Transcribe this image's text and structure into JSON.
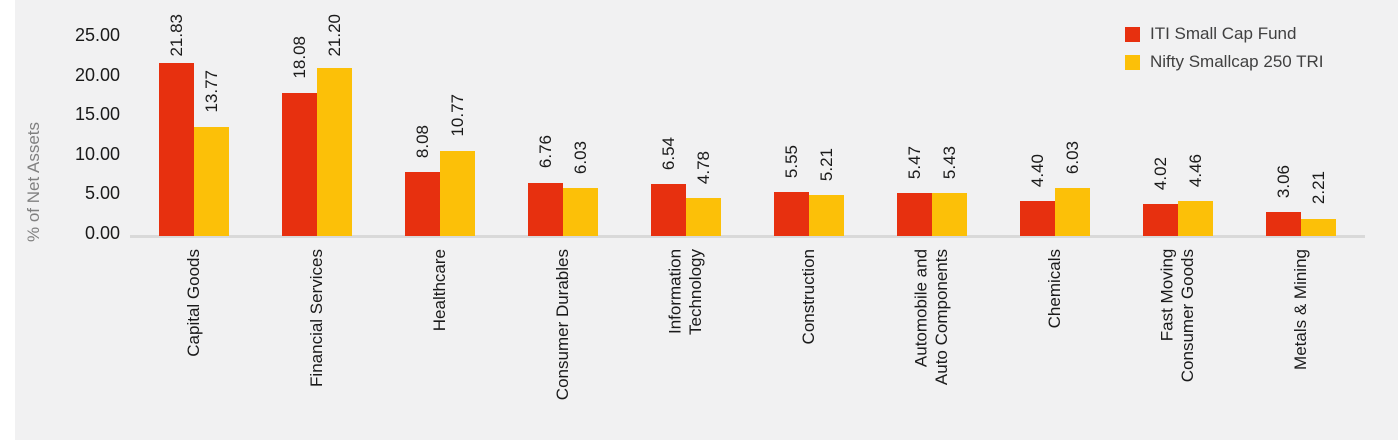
{
  "chart_data": {
    "type": "bar",
    "title": "",
    "xlabel": "",
    "ylabel": "% of Net Assets",
    "ylim": [
      0,
      25
    ],
    "grid": false,
    "legend_position": "top-right",
    "y_ticks": [
      0,
      5,
      10,
      15,
      20,
      25
    ],
    "y_tick_labels": [
      "0.00",
      "5.00",
      "10.00",
      "15.00",
      "20.00",
      "25.00"
    ],
    "categories": [
      "Capital Goods",
      "Financial Services",
      "Healthcare",
      "Consumer Durables",
      "Information\nTechnology",
      "Construction",
      "Automobile and\nAuto Components",
      "Chemicals",
      "Fast Moving\nConsumer Goods",
      "Metals & Mining"
    ],
    "series": [
      {
        "name": "ITI Small Cap Fund",
        "color": "#e7300f",
        "values": [
          21.83,
          18.08,
          8.08,
          6.76,
          6.54,
          5.55,
          5.47,
          4.4,
          4.02,
          3.06
        ]
      },
      {
        "name": "Nifty Smallcap 250 TRI",
        "color": "#fcc008",
        "values": [
          13.77,
          21.2,
          10.77,
          6.03,
          4.78,
          5.21,
          5.43,
          6.03,
          4.46,
          2.21
        ]
      }
    ],
    "value_label_decimals": 2
  },
  "colors": {
    "page": "#ffffff",
    "plot_background": "#f1f1f2",
    "axis_line": "#d9d9d9",
    "tick_text": "#1a1a1a",
    "value_label_text": "#1a1a1a",
    "category_text": "#1a1a1a",
    "legend_text": "#404040",
    "y_axis_title_text": "#808080"
  }
}
